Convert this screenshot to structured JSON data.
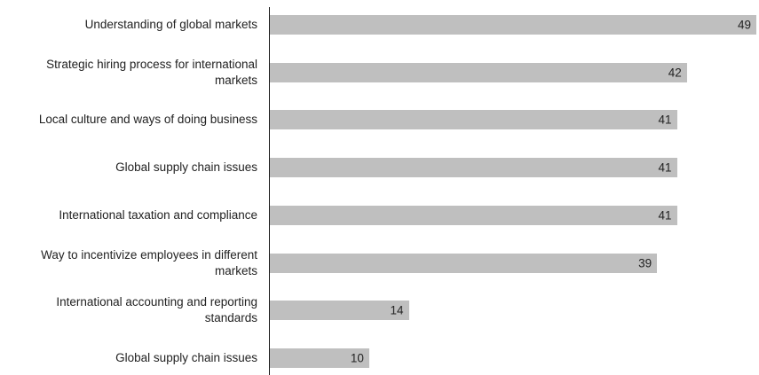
{
  "chart_data": {
    "type": "bar",
    "orientation": "horizontal",
    "categories": [
      "Understanding of global markets",
      "Strategic hiring process for international markets",
      "Local culture and ways of doing business",
      "Global supply chain issues",
      "International taxation and compliance",
      "Way to incentivize employees in different markets",
      "International accounting and reporting standards",
      "Global supply chain issues"
    ],
    "values": [
      49,
      42,
      41,
      41,
      41,
      39,
      14,
      10
    ],
    "color": "#bfbfbf",
    "xlim": [
      0,
      49
    ]
  }
}
